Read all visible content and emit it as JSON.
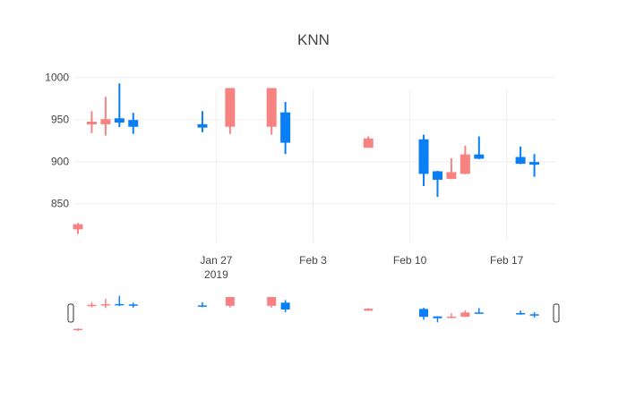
{
  "chart_data": {
    "type": "candlestick",
    "title": "KNN",
    "xlabel": "",
    "ylabel": "",
    "ylim": [
      805,
      1005
    ],
    "yticks": [
      850,
      900,
      950,
      1000
    ],
    "xlim": [
      "2019-01-17",
      "2019-02-20"
    ],
    "xticks": [
      {
        "date": "2019-01-27",
        "label": "Jan 27",
        "sublabel": "2019"
      },
      {
        "date": "2019-02-03",
        "label": "Feb 3",
        "sublabel": ""
      },
      {
        "date": "2019-02-10",
        "label": "Feb 10",
        "sublabel": ""
      },
      {
        "date": "2019-02-17",
        "label": "Feb 17",
        "sublabel": ""
      }
    ],
    "grid": true,
    "rangeslider": true,
    "colors": {
      "increasing": "#0a7ef5",
      "decreasing": "#f78282",
      "grid": "#eeeeee"
    },
    "candles": [
      {
        "date": "2019-01-17",
        "open": 825,
        "high": 827,
        "low": 814,
        "close": 820
      },
      {
        "date": "2019-01-18",
        "open": 947,
        "high": 960,
        "low": 934,
        "close": 945
      },
      {
        "date": "2019-01-19",
        "open": 950,
        "high": 977,
        "low": 931,
        "close": 945
      },
      {
        "date": "2019-01-20",
        "open": 947,
        "high": 993,
        "low": 941,
        "close": 951
      },
      {
        "date": "2019-01-21",
        "open": 942,
        "high": 958,
        "low": 933,
        "close": 949
      },
      {
        "date": "2019-01-26",
        "open": 941,
        "high": 960,
        "low": 935,
        "close": 944
      },
      {
        "date": "2019-01-28",
        "open": 987,
        "high": 987,
        "low": 933,
        "close": 942
      },
      {
        "date": "2019-01-31",
        "open": 987,
        "high": 987,
        "low": 932,
        "close": 942
      },
      {
        "date": "2019-02-01",
        "open": 923,
        "high": 971,
        "low": 909,
        "close": 958
      },
      {
        "date": "2019-02-07",
        "open": 927,
        "high": 930,
        "low": 917,
        "close": 917
      },
      {
        "date": "2019-02-11",
        "open": 886,
        "high": 932,
        "low": 871,
        "close": 926
      },
      {
        "date": "2019-02-12",
        "open": 879,
        "high": 889,
        "low": 858,
        "close": 888
      },
      {
        "date": "2019-02-13",
        "open": 887,
        "high": 904,
        "low": 879,
        "close": 880
      },
      {
        "date": "2019-02-14",
        "open": 908,
        "high": 919,
        "low": 885,
        "close": 886
      },
      {
        "date": "2019-02-15",
        "open": 904,
        "high": 930,
        "low": 903,
        "close": 908
      },
      {
        "date": "2019-02-18",
        "open": 898,
        "high": 918,
        "low": 897,
        "close": 905
      },
      {
        "date": "2019-02-19",
        "open": 897,
        "high": 909,
        "low": 882,
        "close": 899
      }
    ]
  }
}
